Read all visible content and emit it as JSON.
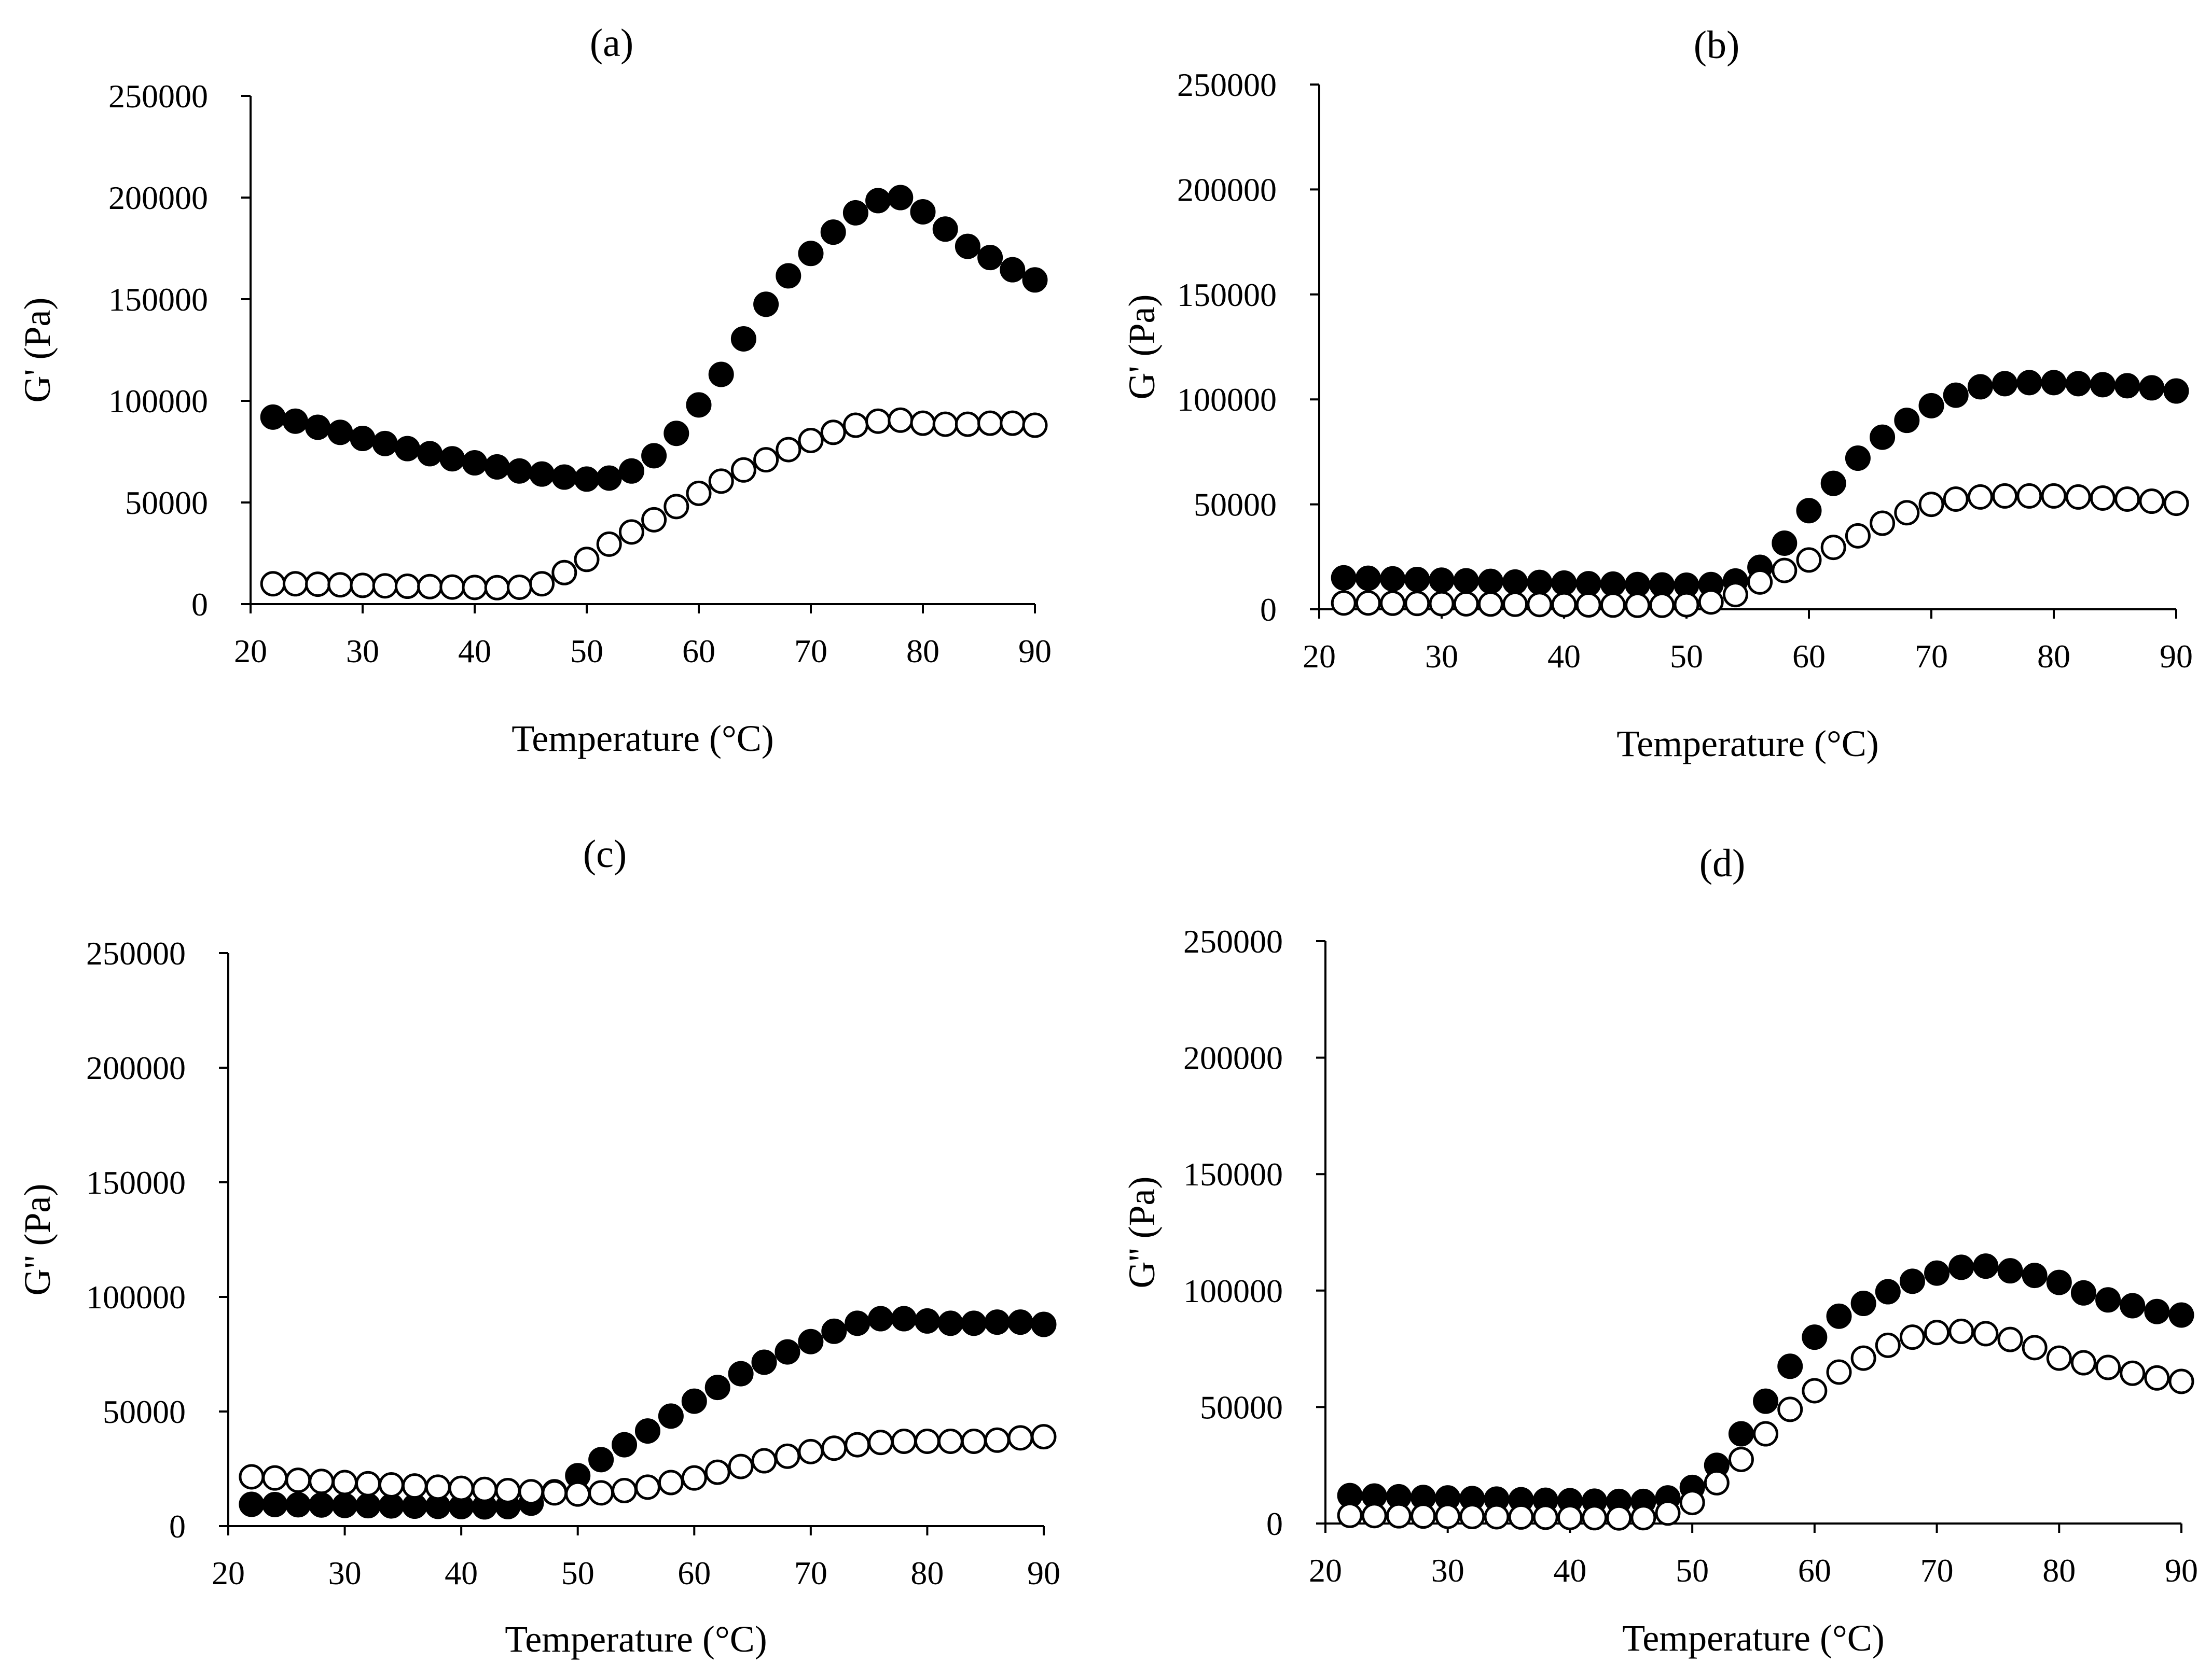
{
  "chart_data": [
    {
      "type": "scatter",
      "title": "(a)",
      "xlabel": "Temperature (°C)",
      "ylabel": "G' (Pa)",
      "xlim": [
        20,
        90
      ],
      "ylim": [
        0,
        250000
      ],
      "xticks": [
        "20",
        "30",
        "40",
        "50",
        "60",
        "70",
        "80",
        "90"
      ],
      "yticks": [
        "0",
        "50000",
        "100000",
        "150000",
        "200000",
        "250000"
      ],
      "x": [
        22,
        24,
        26,
        28,
        30,
        32,
        34,
        36,
        38,
        40,
        42,
        44,
        46,
        48,
        50,
        52,
        54,
        56,
        58,
        60,
        62,
        64,
        66,
        68,
        70,
        72,
        74,
        76,
        78,
        80,
        82,
        84,
        86,
        88,
        90
      ],
      "series": [
        {
          "name": "filled",
          "marker": "filled",
          "values": [
            92000,
            90000,
            87000,
            84500,
            81500,
            79000,
            76500,
            74000,
            71500,
            69500,
            67500,
            65500,
            64000,
            62500,
            61500,
            62000,
            65500,
            73000,
            84000,
            98000,
            113000,
            130500,
            147500,
            161500,
            172500,
            183000,
            192500,
            198500,
            200000,
            193000,
            184500,
            176000,
            170500,
            164500,
            159500
          ]
        },
        {
          "name": "open",
          "marker": "open",
          "values": [
            10000,
            10000,
            9800,
            9500,
            9200,
            9000,
            8800,
            8600,
            8400,
            8200,
            8100,
            8300,
            10000,
            15500,
            22000,
            29500,
            35500,
            41500,
            48000,
            54500,
            60500,
            66000,
            71000,
            76000,
            80500,
            84500,
            88000,
            90000,
            90500,
            89000,
            88500,
            88500,
            89000,
            89000,
            88000
          ]
        }
      ]
    },
    {
      "type": "scatter",
      "title": "(b)",
      "xlabel": "Temperature (°C)",
      "ylabel": "G' (Pa)",
      "xlim": [
        20,
        90
      ],
      "ylim": [
        0,
        250000
      ],
      "xticks": [
        "20",
        "30",
        "40",
        "50",
        "60",
        "70",
        "80",
        "90"
      ],
      "yticks": [
        "0",
        "50000",
        "100000",
        "150000",
        "200000",
        "250000"
      ],
      "x": [
        22,
        24,
        26,
        28,
        30,
        32,
        34,
        36,
        38,
        40,
        42,
        44,
        46,
        48,
        50,
        52,
        54,
        56,
        58,
        60,
        62,
        64,
        66,
        68,
        70,
        72,
        74,
        76,
        78,
        80,
        82,
        84,
        86,
        88,
        90
      ],
      "series": [
        {
          "name": "filled",
          "marker": "filled",
          "values": [
            15000,
            14800,
            14500,
            14200,
            13900,
            13600,
            13300,
            13000,
            12800,
            12500,
            12200,
            12000,
            11800,
            11600,
            11500,
            11800,
            13500,
            20000,
            31500,
            47000,
            60000,
            72000,
            82000,
            90000,
            97000,
            102000,
            106000,
            107500,
            108000,
            108000,
            107500,
            107000,
            106500,
            105500,
            104000
          ]
        },
        {
          "name": "open",
          "marker": "open",
          "values": [
            3000,
            3000,
            2900,
            2800,
            2700,
            2600,
            2500,
            2400,
            2300,
            2200,
            2100,
            2000,
            1900,
            1900,
            2200,
            3500,
            7000,
            13000,
            18500,
            23500,
            29500,
            35000,
            41000,
            46000,
            50000,
            52500,
            53500,
            54000,
            54000,
            54000,
            53500,
            53000,
            52500,
            51500,
            50500
          ]
        }
      ]
    },
    {
      "type": "scatter",
      "title": "(c)",
      "xlabel": "Temperature (°C)",
      "ylabel": "G'' (Pa)",
      "xlim": [
        20,
        90
      ],
      "ylim": [
        0,
        250000
      ],
      "xticks": [
        "20",
        "30",
        "40",
        "50",
        "60",
        "70",
        "80",
        "90"
      ],
      "yticks": [
        "0",
        "50000",
        "100000",
        "150000",
        "200000",
        "250000"
      ],
      "x": [
        22,
        24,
        26,
        28,
        30,
        32,
        34,
        36,
        38,
        40,
        42,
        44,
        46,
        48,
        50,
        52,
        54,
        56,
        58,
        60,
        62,
        64,
        66,
        68,
        70,
        72,
        74,
        76,
        78,
        80,
        82,
        84,
        86,
        88,
        90
      ],
      "series": [
        {
          "name": "filled",
          "marker": "filled",
          "values": [
            9500,
            9400,
            9300,
            9200,
            9000,
            8900,
            8800,
            8700,
            8600,
            8500,
            8400,
            8500,
            10000,
            15000,
            22000,
            29000,
            35500,
            41500,
            48000,
            54500,
            60500,
            66500,
            71500,
            76000,
            80500,
            85000,
            88500,
            90500,
            90500,
            89500,
            88500,
            88500,
            89000,
            89000,
            88000
          ]
        },
        {
          "name": "open",
          "marker": "open",
          "values": [
            21500,
            21000,
            20000,
            19500,
            19000,
            18500,
            18000,
            17500,
            17000,
            16500,
            16000,
            15500,
            15000,
            14500,
            14000,
            14500,
            15500,
            17000,
            19000,
            21000,
            23500,
            26000,
            28500,
            30500,
            32500,
            34000,
            35500,
            36500,
            37000,
            37000,
            37000,
            37000,
            37500,
            38500,
            39000
          ]
        }
      ]
    },
    {
      "type": "scatter",
      "title": "(d)",
      "xlabel": "Temperature (°C)",
      "ylabel": "G'' (Pa)",
      "xlim": [
        20,
        90
      ],
      "ylim": [
        0,
        250000
      ],
      "xticks": [
        "20",
        "30",
        "40",
        "50",
        "60",
        "70",
        "80",
        "90"
      ],
      "yticks": [
        "0",
        "50000",
        "100000",
        "150000",
        "200000",
        "250000"
      ],
      "x": [
        22,
        24,
        26,
        28,
        30,
        32,
        34,
        36,
        38,
        40,
        42,
        44,
        46,
        48,
        50,
        52,
        54,
        56,
        58,
        60,
        62,
        64,
        66,
        68,
        70,
        72,
        74,
        76,
        78,
        80,
        82,
        84,
        86,
        88,
        90
      ],
      "series": [
        {
          "name": "filled",
          "marker": "filled",
          "values": [
            12000,
            11800,
            11500,
            11200,
            11000,
            10700,
            10500,
            10200,
            10000,
            9800,
            9600,
            9500,
            9500,
            11000,
            15500,
            25000,
            38500,
            52500,
            67500,
            80000,
            89000,
            94500,
            99500,
            104000,
            107500,
            110000,
            110500,
            108500,
            106500,
            103500,
            99000,
            96000,
            93500,
            91000,
            89500
          ]
        },
        {
          "name": "open",
          "marker": "open",
          "values": [
            3500,
            3400,
            3300,
            3200,
            3100,
            3000,
            2900,
            2800,
            2700,
            2600,
            2500,
            2400,
            2500,
            4500,
            9000,
            17500,
            27500,
            38500,
            49000,
            57000,
            65000,
            71000,
            76500,
            80000,
            82000,
            82500,
            81500,
            79000,
            75500,
            71000,
            69000,
            67000,
            64500,
            62500,
            61000
          ]
        }
      ]
    }
  ]
}
